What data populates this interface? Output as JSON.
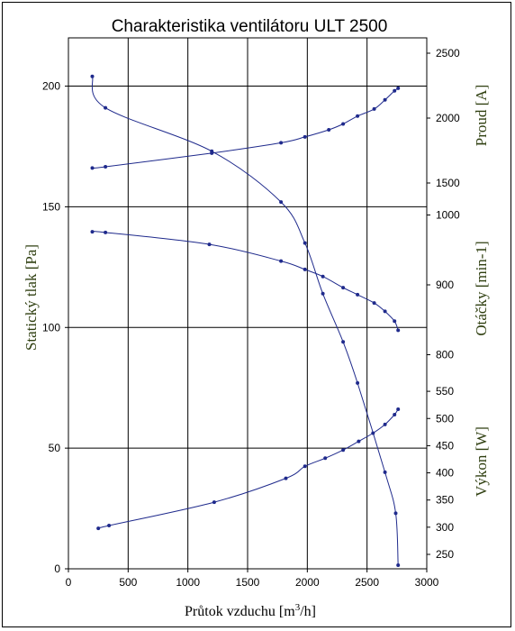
{
  "chart_data": {
    "type": "line",
    "title": "Charakteristika ventilátoru ULT 2500",
    "xlabel": "Průtok vzduchu [m",
    "xlabel_sup": "3",
    "xlabel_tail": "/h]",
    "xlim": [
      0,
      3000
    ],
    "x_ticks": [
      "0",
      "500",
      "1000",
      "1500",
      "2000",
      "2500",
      "3000"
    ],
    "grid": true,
    "line_color": "#1f2a8c",
    "axes": {
      "left": {
        "label": "Statický tlak [Pa]",
        "ylim": [
          0,
          220
        ],
        "ticks": [
          "0",
          "50",
          "100",
          "150",
          "200"
        ]
      },
      "right_current": {
        "label": "Proud [A]",
        "ticks": [
          "1500",
          "2000",
          "2500"
        ]
      },
      "right_speed": {
        "label": "Otáčky [min-1]",
        "ticks": [
          "800",
          "900",
          "1000"
        ]
      },
      "right_power": {
        "label": "Výkon [W]",
        "ticks": [
          "250",
          "300",
          "350",
          "400",
          "450",
          "500",
          "550"
        ]
      }
    },
    "series": [
      {
        "axis": "left",
        "x": [
          200,
          310,
          1200,
          1780,
          1980,
          2130,
          2300,
          2420,
          2650,
          2740,
          2760
        ],
        "y": [
          204,
          191,
          173,
          152,
          135,
          114,
          94,
          77,
          40,
          23,
          1.5
        ]
      },
      {
        "axis": "right_current",
        "x": [
          200,
          310,
          1200,
          1780,
          1980,
          2180,
          2300,
          2420,
          2560,
          2650,
          2730,
          2760
        ],
        "y": [
          1615,
          1625,
          1730,
          1810,
          1855,
          1910,
          1955,
          2015,
          2070,
          2140,
          2210,
          2230
        ]
      },
      {
        "axis": "right_speed",
        "x": [
          200,
          310,
          1180,
          1780,
          1980,
          2130,
          2300,
          2420,
          2560,
          2650,
          2730,
          2760
        ],
        "y": [
          976,
          975,
          958,
          934,
          922,
          912,
          896,
          886,
          874,
          862,
          848,
          835
        ]
      },
      {
        "axis": "right_power",
        "x": [
          250,
          340,
          1220,
          1820,
          1980,
          2150,
          2300,
          2430,
          2550,
          2650,
          2730,
          2760
        ],
        "y": [
          298,
          303,
          346,
          390,
          412,
          427,
          442,
          458,
          473,
          489,
          507,
          517
        ]
      }
    ]
  }
}
